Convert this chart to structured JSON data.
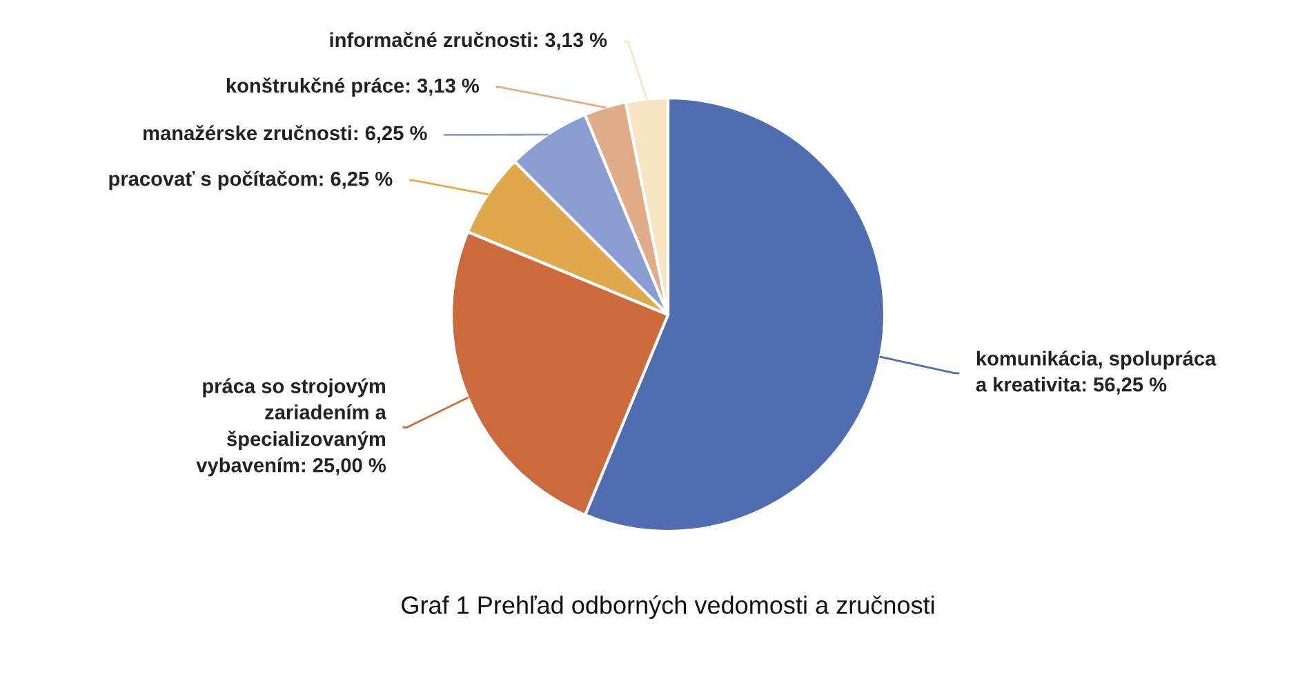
{
  "chart_data": {
    "type": "pie",
    "title": "Graf 1 Prehľad odborných vedomosti a zručnosti",
    "categories": [
      "komunikácia, spolupráca\na kreativita",
      "práca so strojovým\nzariadením a\nšpecializovaným\nvybavením",
      "pracovať s počítačom",
      "manažérske zručnosti",
      "konštrukčné práce",
      "informačné zručnosti"
    ],
    "values": [
      56.25,
      25.0,
      6.25,
      6.25,
      3.13,
      3.13
    ],
    "value_labels": [
      "56,25 %",
      "25,00 %",
      "6,25 %",
      "6,25 %",
      "3,13 %",
      "3,13 %"
    ],
    "colors": [
      "#4f6db0",
      "#cc6a3c",
      "#dfa94b",
      "#8a9dd1",
      "#e0ad88",
      "#f6e4c2"
    ]
  }
}
